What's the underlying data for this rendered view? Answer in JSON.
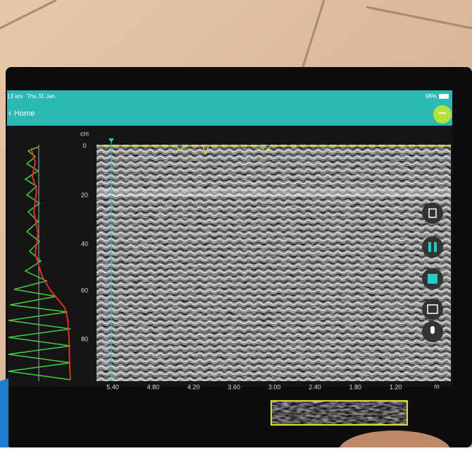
{
  "status_bar": {
    "time": "13 am",
    "date": "Thu 31 Jan",
    "battery": "98%"
  },
  "header": {
    "back_label": "Home"
  },
  "scan": {
    "depth_unit": "cm",
    "depth_ticks": [
      "0",
      "20",
      "40",
      "60",
      "80"
    ],
    "distance_unit": "m",
    "distance_ticks": [
      "5.40",
      "4.80",
      "4.20",
      "3.60",
      "3.00",
      "2.40",
      "1.80",
      "1.20"
    ]
  }
}
